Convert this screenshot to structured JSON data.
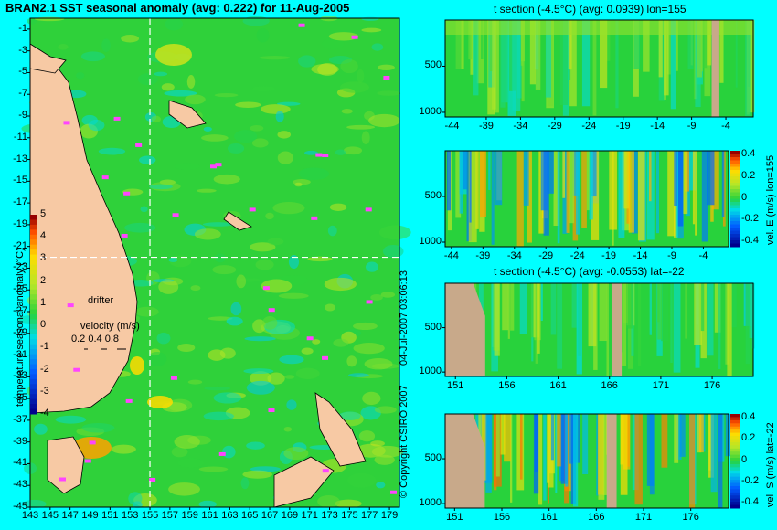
{
  "chart_data": [
    {
      "type": "heatmap",
      "title": "BRAN2.1 SST seasonal anomaly (avg: 0.222) for 11-Aug-2005",
      "x_ticks": [
        "143",
        "145",
        "147",
        "149",
        "151",
        "153",
        "155",
        "157",
        "159",
        "161",
        "163",
        "165",
        "167",
        "169",
        "171",
        "173",
        "175",
        "177",
        "179"
      ],
      "y_ticks": [
        "-1",
        "-3",
        "-5",
        "-7",
        "-9",
        "-11",
        "-13",
        "-15",
        "-17",
        "-19",
        "-21",
        "-23",
        "-25",
        "-27",
        "-29",
        "-31",
        "-33",
        "-35",
        "-37",
        "-39",
        "-41",
        "-43",
        "-45"
      ],
      "xlim": [
        143,
        180
      ],
      "ylim": [
        -45,
        0
      ],
      "section_lines": {
        "lon": 155,
        "lat": -22
      },
      "colorbar": {
        "label": "temperature seasonal anomaly (°C)",
        "ticks": [
          "5",
          "4",
          "3",
          "2",
          "1",
          "0",
          "-1",
          "-2",
          "-3",
          "-4"
        ],
        "range": [
          -4,
          5
        ]
      },
      "legend": {
        "drifter": "drifter",
        "velocity_label": "velocity (m/s)",
        "velocity_values": "0.2 0.4 0.8"
      }
    },
    {
      "type": "heatmap",
      "title": "t section (-4.5°C) (avg: 0.0939) lon=155",
      "x_ticks": [
        "-44",
        "-39",
        "-34",
        "-29",
        "-24",
        "-19",
        "-14",
        "-9",
        "-4"
      ],
      "y_ticks": [
        "500",
        "1000"
      ],
      "xlim": [
        -45,
        0
      ],
      "ylim": [
        1050,
        0
      ]
    },
    {
      "type": "heatmap",
      "title": "",
      "colorbar": {
        "label": "vel. E (m/s) lon=155",
        "ticks": [
          "0.4",
          "0.2",
          "0",
          "-0.2",
          "-0.4"
        ],
        "range": [
          -0.4,
          0.4
        ]
      },
      "x_ticks": [
        "-44",
        "-39",
        "-34",
        "-29",
        "-24",
        "-19",
        "-14",
        "-9",
        "-4"
      ],
      "y_ticks": [
        "500",
        "1000"
      ],
      "xlim": [
        -45,
        0
      ],
      "ylim": [
        1050,
        0
      ]
    },
    {
      "type": "heatmap",
      "title": "t section (-4.5°C) (avg: -0.0553) lat=-22",
      "x_ticks": [
        "151",
        "156",
        "161",
        "166",
        "171",
        "176"
      ],
      "y_ticks": [
        "500",
        "1000"
      ],
      "xlim": [
        150,
        180
      ],
      "ylim": [
        1050,
        0
      ]
    },
    {
      "type": "heatmap",
      "title": "",
      "colorbar": {
        "label": "vel. S (m/s) lat=-22",
        "ticks": [
          "0.4",
          "0.2",
          "0",
          "-0.2",
          "-0.4"
        ],
        "range": [
          -0.4,
          0.4
        ]
      },
      "x_ticks": [
        "151",
        "156",
        "161",
        "166",
        "171",
        "176"
      ],
      "y_ticks": [
        "500",
        "1000"
      ],
      "xlim": [
        150,
        180
      ],
      "ylim": [
        1050,
        0
      ]
    }
  ],
  "copyright": "© Copyright CSIRO 2007",
  "timestamp": "04-Jul-2007 03:06:13",
  "colors": {
    "background": "#00ffff",
    "land": "#f7c9a4",
    "ocean": "#2fd13a",
    "section_land": "#c8a98a",
    "drifter": "#ff44ff"
  }
}
